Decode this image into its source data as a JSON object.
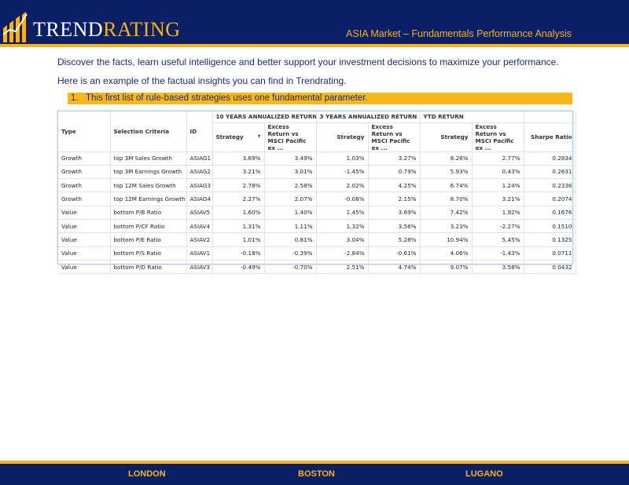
{
  "header": {
    "logo_part1": "TREND",
    "logo_part2": "RATING",
    "title": "ASIA Market – Fundamentals Performance Analysis",
    "colors": {
      "navy": "#0b1f66",
      "gold": "#f5b21b"
    }
  },
  "intro": {
    "p1": "Discover the facts, learn useful intelligence and better support your investment decisions to maximize your performance.",
    "p2": "Here is an example of the factual insights you can find in Trendrating."
  },
  "list_item": {
    "number": "1.",
    "text": "This first list of rule-based strategies uses one fundamental parameter."
  },
  "table": {
    "col_type": "Type",
    "col_criteria": "Selection Criteria",
    "col_id": "ID",
    "group_10y": "10 YEARS ANNUALIZED RETURN",
    "group_3y": "3 YEARS ANNUALIZED RETURN",
    "group_ytd": "YTD RETURN",
    "sub_strategy": "Strategy",
    "sub_excess_l1": "Excess Return vs",
    "sub_excess_l2": "MSCI Pacific ex ...",
    "col_sharpe": "Sharpe Ratio",
    "sort_icon": "sort-descending-icon",
    "rows": [
      [
        "Growth",
        "top 3M Sales Growth",
        "ASIAG1",
        "3.69%",
        "3.49%",
        "1.03%",
        "3.27%",
        "8.26%",
        "2.77%",
        "0.2834"
      ],
      [
        "Growth",
        "top 3M Earnings Growth",
        "ASIAG2",
        "3.21%",
        "3.01%",
        "-1.45%",
        "0.79%",
        "5.93%",
        "0.43%",
        "0.2631"
      ],
      [
        "Growth",
        "top 12M Sales Growth",
        "ASIAG3",
        "2.78%",
        "2.58%",
        "2.02%",
        "4.25%",
        "6.74%",
        "1.24%",
        "0.2336"
      ],
      [
        "Growth",
        "top 12M Earnings Growth",
        "ASIAG4",
        "2.27%",
        "2.07%",
        "-0.08%",
        "2.15%",
        "8.70%",
        "3.21%",
        "0.2074"
      ],
      [
        "Value",
        "bottom P/B Ratio",
        "ASIAV5",
        "1.60%",
        "1.40%",
        "1.45%",
        "3.69%",
        "7.42%",
        "1.92%",
        "0.1676"
      ],
      [
        "Value",
        "bottom P/CF Ratio",
        "ASIAV4",
        "1.31%",
        "1.11%",
        "1.32%",
        "3.56%",
        "3.23%",
        "-2.27%",
        "0.1510"
      ],
      [
        "Value",
        "bottom P/E Ratio",
        "ASIAV2",
        "1.01%",
        "0.81%",
        "3.04%",
        "5.28%",
        "10.94%",
        "5.45%",
        "0.1325"
      ],
      [
        "Value",
        "bottom P/S Ratio",
        "ASIAV1",
        "-0.18%",
        "-0.39%",
        "-2.84%",
        "-0.61%",
        "4.06%",
        "-1.43%",
        "0.0711"
      ],
      [
        "Value",
        "bottom P/D Ratio",
        "ASIAV3",
        "-0.49%",
        "-0.70%",
        "2.51%",
        "4.74%",
        "9.07%",
        "3.58%",
        "0.0432"
      ]
    ]
  },
  "footer": {
    "cities": [
      "LONDON",
      "BOSTON",
      "LUGANO"
    ]
  }
}
